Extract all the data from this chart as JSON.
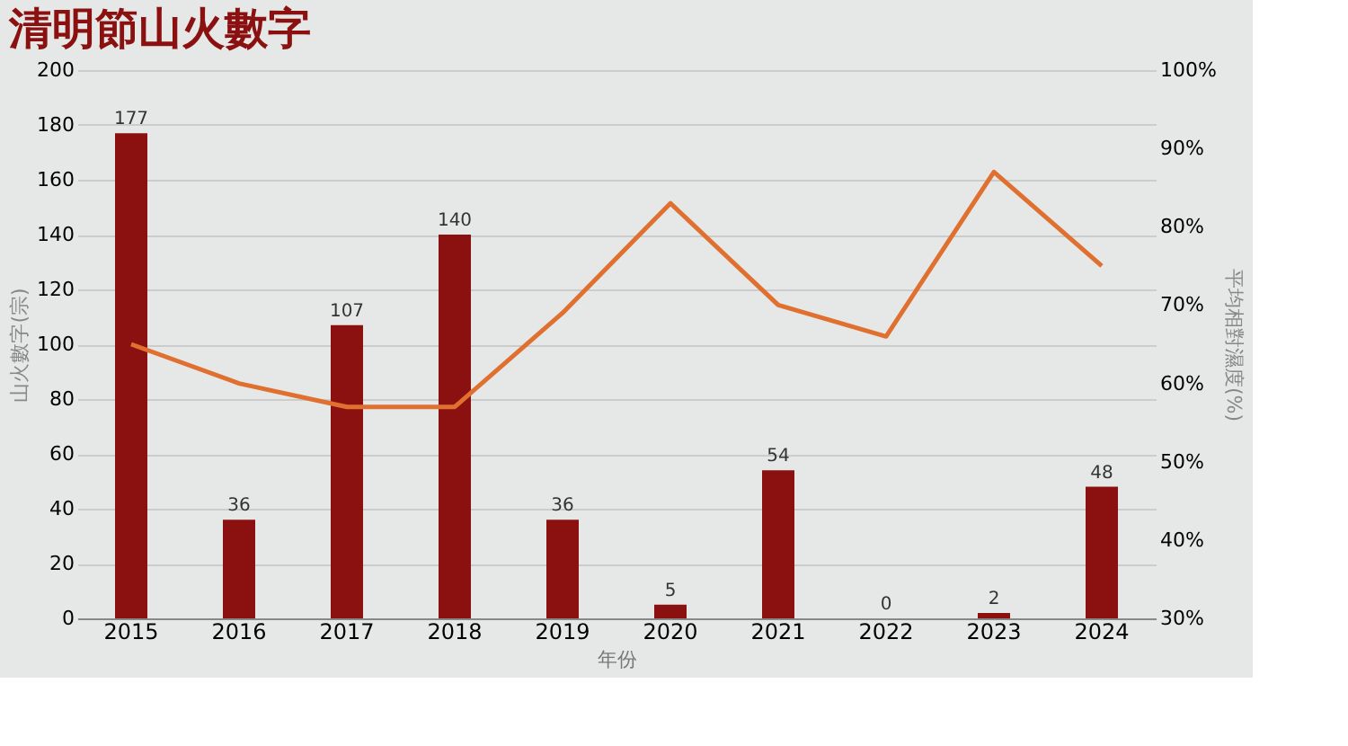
{
  "chart_data": {
    "type": "bar",
    "title": "清明節山火數字",
    "xlabel": "年份",
    "ylabel": "山火數字(宗)",
    "y2label": "平均相對濕度(%)",
    "categories": [
      "2015",
      "2016",
      "2017",
      "2018",
      "2019",
      "2020",
      "2021",
      "2022",
      "2023",
      "2024"
    ],
    "series": [
      {
        "color": "#8b1010",
        "values": [
          177,
          36,
          107,
          140,
          36,
          5,
          54,
          0,
          2,
          48
        ],
        "value_labels": [
          "177",
          "36",
          "107",
          "140",
          "36",
          "5",
          "54",
          "0",
          "2",
          "48"
        ]
      },
      {
        "type": "line",
        "axis": "y2",
        "color": "#e07030",
        "values": [
          65,
          60,
          57,
          57,
          69,
          83,
          70,
          66,
          87,
          75
        ]
      }
    ],
    "ylim": [
      0,
      200
    ],
    "yticks": [
      0,
      20,
      40,
      60,
      80,
      100,
      120,
      140,
      160,
      180,
      200
    ],
    "y2lim": [
      30,
      100
    ],
    "y2ticks": [
      {
        "value": 30,
        "label": "30%"
      },
      {
        "value": 40,
        "label": "40%"
      },
      {
        "value": 50,
        "label": "50%"
      },
      {
        "value": 60,
        "label": "60%"
      },
      {
        "value": 70,
        "label": "70%"
      },
      {
        "value": 80,
        "label": "80%"
      },
      {
        "value": 90,
        "label": "90%"
      },
      {
        "value": 100,
        "label": "100%"
      }
    ],
    "grid": "y",
    "legend": false,
    "marker": "none",
    "line_style": "solid"
  }
}
